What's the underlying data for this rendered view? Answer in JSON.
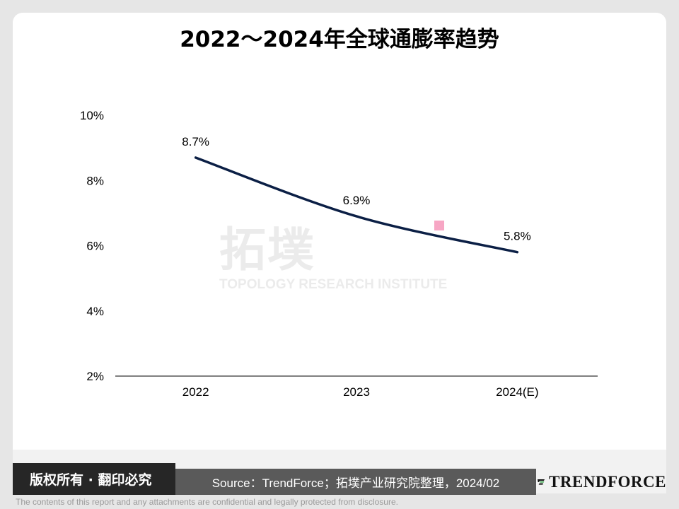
{
  "title": "2022～2024年全球通膨率趋势",
  "watermark": {
    "cn": "拓墣",
    "en": "TOPOLOGY RESEARCH INSTITUTE"
  },
  "footer": {
    "copyright": "版权所有 · 翻印必究",
    "source": "Source：TrendForce；拓墣产业研究院整理，2024/02",
    "logo_text": "TRENDFORCE",
    "disclaimer": "The contents of this report and any attachments are confidential and legally protected from disclosure."
  },
  "colors": {
    "line": "#0b1f45",
    "watermark_marker": "#f7a6c4"
  },
  "chart_data": {
    "type": "line",
    "title": "2022～2024年全球通膨率趋势",
    "categories": [
      "2022",
      "2023",
      "2024(E)"
    ],
    "series": [
      {
        "values": [
          8.7,
          6.9,
          5.8
        ],
        "labels": [
          "8.7%",
          "6.9%",
          "5.8%"
        ]
      }
    ],
    "ylim": [
      2,
      10
    ],
    "yticks": [
      "2%",
      "4%",
      "6%",
      "8%",
      "10%"
    ],
    "grid": false,
    "legend": "none"
  }
}
